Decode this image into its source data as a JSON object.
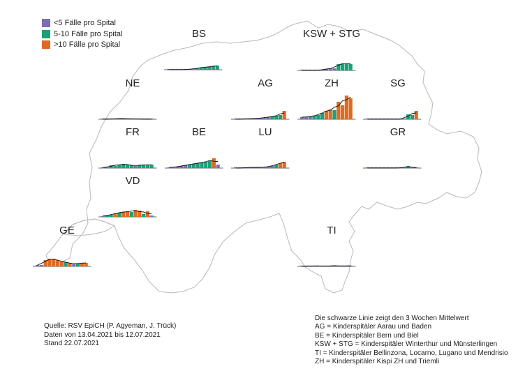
{
  "colors": {
    "lt5": "#7a6fb6",
    "b5to10": "#1aa17a",
    "gt10": "#e06b20",
    "outline": "#b8b8b8",
    "avg_line": "#111111"
  },
  "legend": {
    "items": [
      {
        "key": "lt5",
        "label": "<5 Fälle pro Spital"
      },
      {
        "key": "b5to10",
        "label": "5-10 Fälle pro Spital"
      },
      {
        "key": "gt10",
        "label": ">10 Fälle pro Spital"
      }
    ]
  },
  "regions": [
    {
      "id": "bs",
      "label": "BS"
    },
    {
      "id": "ksw-stg",
      "label": "KSW + STG"
    },
    {
      "id": "ne",
      "label": "NE"
    },
    {
      "id": "ag",
      "label": "AG"
    },
    {
      "id": "zh",
      "label": "ZH"
    },
    {
      "id": "sg",
      "label": "SG"
    },
    {
      "id": "fr",
      "label": "FR"
    },
    {
      "id": "be",
      "label": "BE"
    },
    {
      "id": "lu",
      "label": "LU"
    },
    {
      "id": "gr",
      "label": "GR"
    },
    {
      "id": "vd",
      "label": "VD"
    },
    {
      "id": "ge",
      "label": "GE"
    },
    {
      "id": "ti",
      "label": "TI"
    }
  ],
  "chart_data": {
    "type": "bar",
    "weeks": 13,
    "bar_category_rule": "color by weekly cases per hospital: <5, 5-10, >10",
    "line": "3-week rolling mean",
    "series": [
      {
        "region": "BS",
        "values": [
          0,
          0,
          0,
          0,
          0,
          1,
          1,
          2,
          3,
          4,
          4,
          5,
          6
        ],
        "cat": [
          "lt5",
          "lt5",
          "lt5",
          "lt5",
          "lt5",
          "lt5",
          "lt5",
          "b5to10",
          "b5to10",
          "b5to10",
          "b5to10",
          "b5to10",
          "b5to10"
        ]
      },
      {
        "region": "KSW + STG",
        "values": [
          0,
          0,
          0,
          0,
          0,
          1,
          2,
          3,
          3,
          9,
          10,
          10,
          9
        ],
        "cat": [
          "lt5",
          "lt5",
          "lt5",
          "lt5",
          "lt5",
          "lt5",
          "lt5",
          "lt5",
          "lt5",
          "b5to10",
          "b5to10",
          "b5to10",
          "b5to10"
        ]
      },
      {
        "region": "NE",
        "values": [
          0,
          0,
          0,
          1,
          1,
          1,
          1,
          0,
          1,
          0,
          0,
          0,
          0
        ],
        "cat": [
          "lt5",
          "lt5",
          "lt5",
          "lt5",
          "lt5",
          "lt5",
          "lt5",
          "lt5",
          "lt5",
          "lt5",
          "lt5",
          "lt5",
          "lt5"
        ]
      },
      {
        "region": "AG",
        "values": [
          0,
          0,
          0,
          1,
          1,
          1,
          2,
          2,
          3,
          4,
          5,
          6,
          12
        ],
        "cat": [
          "lt5",
          "lt5",
          "lt5",
          "lt5",
          "lt5",
          "lt5",
          "lt5",
          "lt5",
          "lt5",
          "b5to10",
          "b5to10",
          "b5to10",
          "gt10"
        ]
      },
      {
        "region": "ZH",
        "values": [
          3,
          3,
          4,
          5,
          6,
          9,
          12,
          14,
          13,
          25,
          20,
          34,
          30
        ],
        "cat": [
          "lt5",
          "lt5",
          "lt5",
          "b5to10",
          "b5to10",
          "b5to10",
          "gt10",
          "gt10",
          "b5to10",
          "gt10",
          "gt10",
          "gt10",
          "gt10"
        ]
      },
      {
        "region": "SG",
        "values": [
          0,
          0,
          0,
          0,
          0,
          0,
          0,
          0,
          0,
          0,
          7,
          6,
          12
        ],
        "cat": [
          "lt5",
          "lt5",
          "lt5",
          "lt5",
          "lt5",
          "lt5",
          "lt5",
          "lt5",
          "lt5",
          "lt5",
          "b5to10",
          "b5to10",
          "gt10"
        ]
      },
      {
        "region": "FR",
        "values": [
          0,
          1,
          4,
          3,
          5,
          6,
          5,
          4,
          3,
          4,
          5,
          4,
          5
        ],
        "cat": [
          "lt5",
          "lt5",
          "b5to10",
          "b5to10",
          "b5to10",
          "b5to10",
          "b5to10",
          "b5to10",
          "lt5",
          "b5to10",
          "b5to10",
          "b5to10",
          "b5to10"
        ]
      },
      {
        "region": "BE",
        "values": [
          1,
          1,
          2,
          3,
          4,
          5,
          6,
          7,
          8,
          9,
          10,
          14,
          5
        ],
        "cat": [
          "lt5",
          "lt5",
          "lt5",
          "lt5",
          "lt5",
          "b5to10",
          "b5to10",
          "b5to10",
          "b5to10",
          "b5to10",
          "b5to10",
          "gt10",
          "lt5"
        ]
      },
      {
        "region": "LU",
        "values": [
          0,
          0,
          0,
          1,
          1,
          1,
          1,
          1,
          2,
          3,
          5,
          7,
          9
        ],
        "cat": [
          "lt5",
          "lt5",
          "lt5",
          "lt5",
          "lt5",
          "lt5",
          "lt5",
          "lt5",
          "lt5",
          "lt5",
          "b5to10",
          "gt10",
          "gt10"
        ]
      },
      {
        "region": "GR",
        "values": [
          0,
          0,
          0,
          0,
          0,
          0,
          0,
          0,
          0,
          1,
          3,
          1,
          0
        ],
        "cat": [
          "lt5",
          "lt5",
          "lt5",
          "lt5",
          "lt5",
          "lt5",
          "lt5",
          "lt5",
          "lt5",
          "lt5",
          "b5to10",
          "lt5",
          "lt5"
        ]
      },
      {
        "region": "VD",
        "values": [
          1,
          2,
          3,
          5,
          6,
          7,
          8,
          7,
          10,
          9,
          4,
          8,
          2
        ],
        "cat": [
          "lt5",
          "b5to10",
          "b5to10",
          "gt10",
          "b5to10",
          "gt10",
          "gt10",
          "b5to10",
          "gt10",
          "gt10",
          "b5to10",
          "gt10",
          "lt5"
        ]
      },
      {
        "region": "GE",
        "values": [
          2,
          2,
          9,
          11,
          11,
          9,
          7,
          6,
          5,
          3,
          4,
          5,
          5
        ],
        "cat": [
          "lt5",
          "lt5",
          "gt10",
          "gt10",
          "gt10",
          "gt10",
          "gt10",
          "b5to10",
          "gt10",
          "lt5",
          "b5to10",
          "gt10",
          "gt10"
        ]
      },
      {
        "region": "TI",
        "values": [
          0,
          0,
          0,
          1,
          1,
          0,
          0,
          1,
          1,
          1,
          0,
          1,
          1
        ],
        "cat": [
          "lt5",
          "lt5",
          "lt5",
          "lt5",
          "lt5",
          "lt5",
          "lt5",
          "lt5",
          "lt5",
          "lt5",
          "lt5",
          "lt5",
          "lt5"
        ]
      }
    ]
  },
  "footer": {
    "source_lines": [
      "Quelle: RSV EpiCH (P. Agyeman, J. Trück)",
      "Daten von 13.04.2021 bis 12.07.2021",
      "Stand 22.07.2021"
    ],
    "note_lines": [
      "Die schwarze Linie zeigt den 3 Wochen Mittelwert",
      "AG = Kinderspitäler Aarau und Baden",
      "BE = Kinderspitäler Bern und Biel",
      "KSW + STG = Kinderspitäler Winterthur und Münsterlingen",
      "TI = Kinderspitäler Bellinzona, Locarno, Lugano und Mendrisio",
      "ZH = Kinderspitäler Kispi ZH und Triemli"
    ]
  }
}
